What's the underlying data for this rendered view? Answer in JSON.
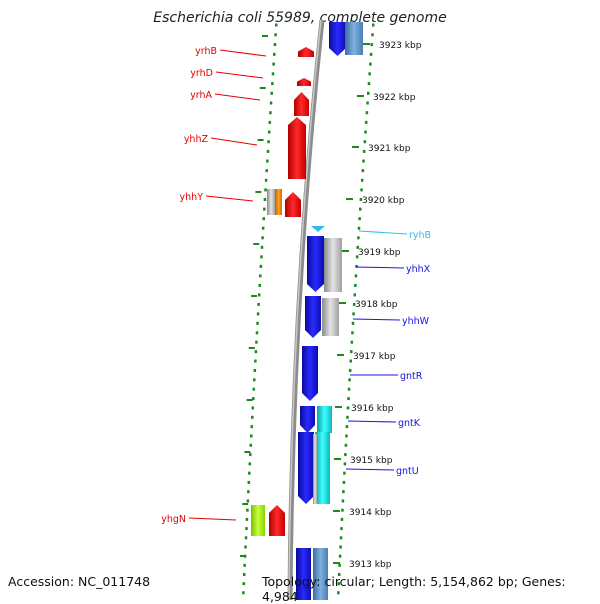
{
  "title": "Escherichia coli 55989, complete genome",
  "accession": "Accession: NC_011748",
  "summary": "Topology: circular; Length: 5,154,862 bp; Genes: 4,984",
  "colors": {
    "forward_gene": "#e80000",
    "reverse_gene": "#1414e6",
    "rna_gene": "#33bbee",
    "scale_dots": "#1a8a1a",
    "backbone": "#8c8c8c"
  },
  "scale_ticks": [
    {
      "label": "3923 kbp",
      "kbp": 3923
    },
    {
      "label": "3922 kbp",
      "kbp": 3922
    },
    {
      "label": "3921 kbp",
      "kbp": 3921
    },
    {
      "label": "3920 kbp",
      "kbp": 3920
    },
    {
      "label": "3919 kbp",
      "kbp": 3919
    },
    {
      "label": "3918 kbp",
      "kbp": 3918
    },
    {
      "label": "3917 kbp",
      "kbp": 3917
    },
    {
      "label": "3916 kbp",
      "kbp": 3916
    },
    {
      "label": "3915 kbp",
      "kbp": 3915
    },
    {
      "label": "3914 kbp",
      "kbp": 3914
    },
    {
      "label": "3913 kbp",
      "kbp": 3913
    }
  ],
  "left_genes": [
    {
      "name": "yrhB",
      "strand": "forward"
    },
    {
      "name": "yrhD",
      "strand": "forward"
    },
    {
      "name": "yrhA",
      "strand": "forward"
    },
    {
      "name": "yhhZ",
      "strand": "forward"
    },
    {
      "name": "yhhY",
      "strand": "forward"
    },
    {
      "name": "yhgN",
      "strand": "forward"
    }
  ],
  "right_genes": [
    {
      "name": "ryhB",
      "strand": "rna"
    },
    {
      "name": "yhhX",
      "strand": "reverse"
    },
    {
      "name": "yhhW",
      "strand": "reverse"
    },
    {
      "name": "gntR",
      "strand": "reverse"
    },
    {
      "name": "gntK",
      "strand": "reverse"
    },
    {
      "name": "gntU",
      "strand": "reverse"
    }
  ]
}
